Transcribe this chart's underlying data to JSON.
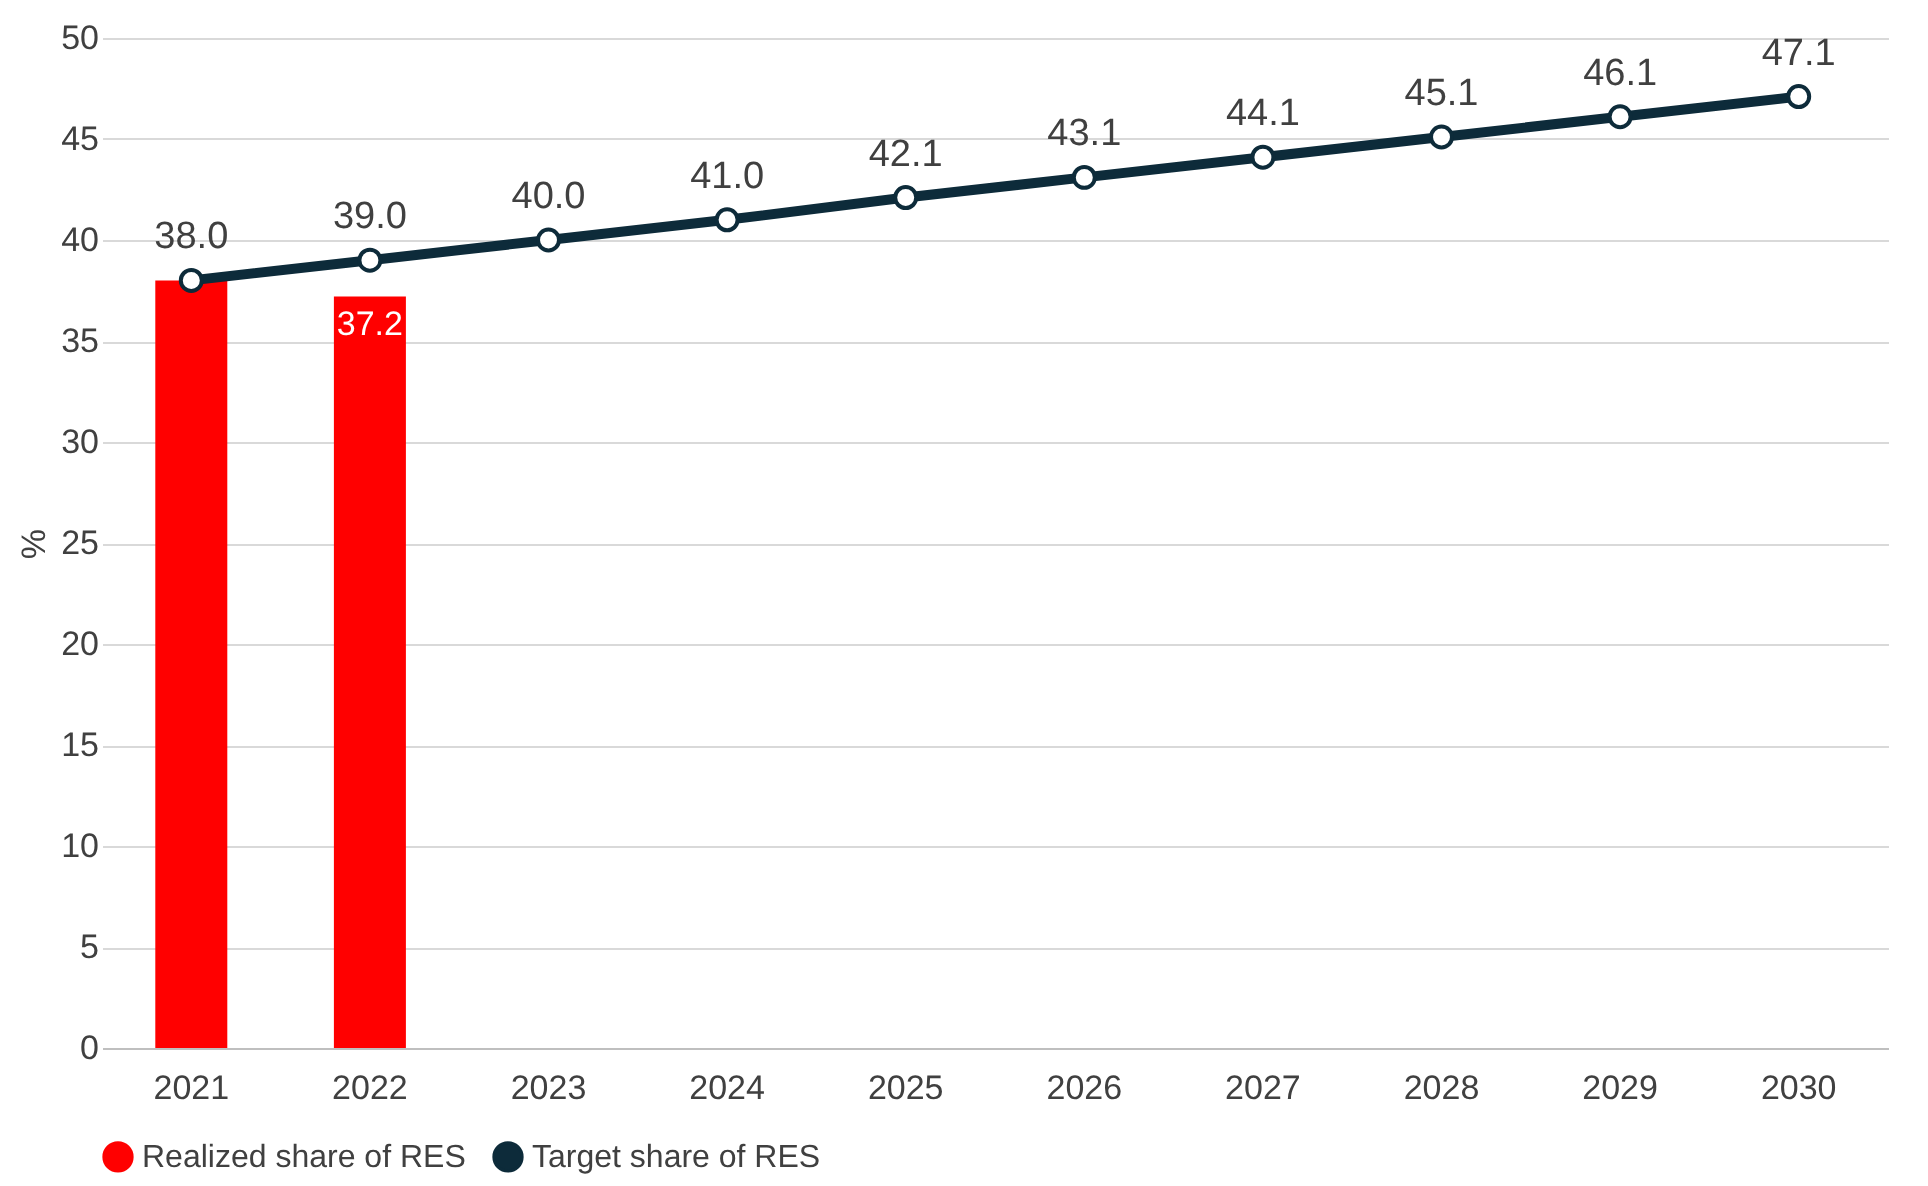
{
  "chart_data": {
    "type": "bar",
    "ylabel": "%",
    "categories": [
      "2021",
      "2022",
      "2023",
      "2024",
      "2025",
      "2026",
      "2027",
      "2028",
      "2029",
      "2030"
    ],
    "series": [
      {
        "name": "Realized share of RES",
        "color": "#ff0000",
        "values": [
          38.0,
          37.2,
          null,
          null,
          null,
          null,
          null,
          null,
          null,
          null
        ],
        "value_labels": [
          null,
          "37.2",
          null,
          null,
          null,
          null,
          null,
          null,
          null,
          null
        ]
      },
      {
        "name": "Target share of RES",
        "type": "line",
        "color": "#0d2b3a",
        "marker": "circle",
        "values": [
          38.0,
          39.0,
          40.0,
          41.0,
          42.1,
          43.1,
          44.1,
          45.1,
          46.1,
          47.1
        ],
        "value_labels": [
          "38.0",
          "39.0",
          "40.0",
          "41.0",
          "42.1",
          "43.1",
          "44.1",
          "45.1",
          "46.1",
          "47.1"
        ]
      }
    ],
    "ylim": [
      0,
      50
    ],
    "yticks": [
      0,
      5,
      10,
      15,
      20,
      25,
      30,
      35,
      40,
      45,
      50
    ],
    "grid": "y",
    "legend": "bottom"
  }
}
